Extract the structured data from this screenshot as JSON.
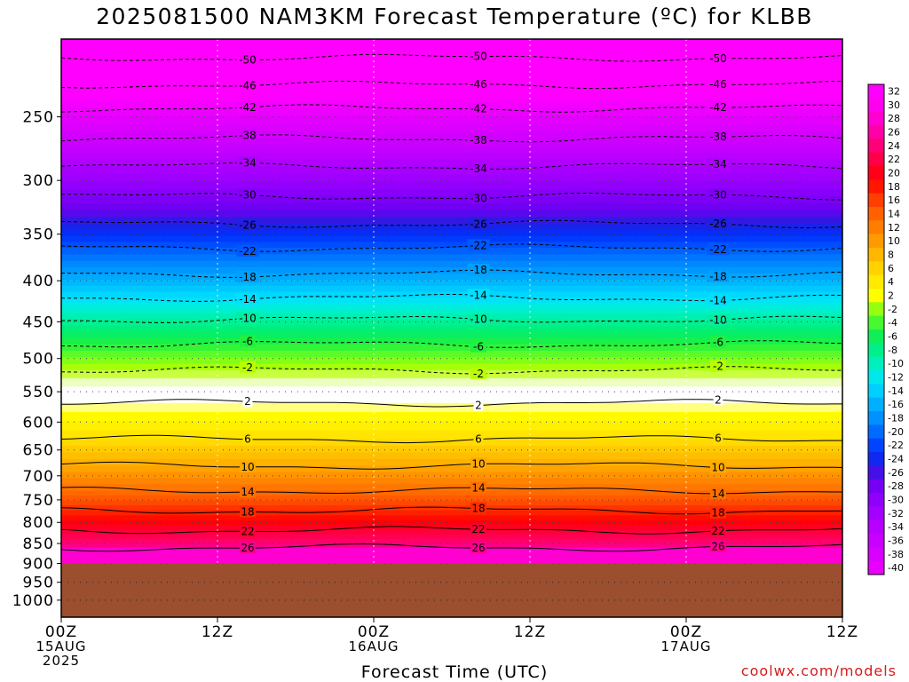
{
  "chart_data": {
    "type": "heatmap",
    "title": "2025081500 NAM3KM Forecast Temperature (ºC) for KLBB",
    "xlabel": "Forecast Time (UTC)",
    "ylabel": "",
    "x_ticks": [
      {
        "lines": [
          "00Z",
          "15AUG",
          "2025"
        ]
      },
      {
        "lines": [
          "12Z"
        ]
      },
      {
        "lines": [
          "00Z",
          "16AUG"
        ]
      },
      {
        "lines": [
          "12Z"
        ]
      },
      {
        "lines": [
          "00Z",
          "17AUG"
        ]
      },
      {
        "lines": [
          "12Z"
        ]
      }
    ],
    "x_range_hours": [
      0,
      60
    ],
    "y_axis": "pressure (log scale, inverted)",
    "y_ticks": [
      250,
      300,
      350,
      400,
      450,
      500,
      550,
      600,
      650,
      700,
      750,
      800,
      850,
      900,
      950,
      1000
    ],
    "ylim": [
      200,
      1050
    ],
    "ground_below_hpa": 900,
    "colorbar_levels": [
      32,
      30,
      28,
      26,
      24,
      22,
      20,
      18,
      16,
      14,
      12,
      10,
      8,
      6,
      4,
      2,
      -2,
      -4,
      -6,
      -8,
      -10,
      -12,
      -14,
      -16,
      -18,
      -20,
      -22,
      -24,
      -26,
      -28,
      -30,
      -32,
      -34,
      -36,
      -38,
      -40
    ],
    "contour_labels": [
      "-50",
      "-46",
      "-42",
      "-38",
      "-34",
      "-30",
      "-26",
      "-22",
      "-18",
      "-14",
      "-10",
      "-6",
      "-2",
      "2",
      "6",
      "10",
      "14",
      "18",
      "22",
      "26"
    ],
    "isotherm_pressure_hpa": [
      {
        "t": -50,
        "p": 211
      },
      {
        "t": -46,
        "p": 228
      },
      {
        "t": -42,
        "p": 244
      },
      {
        "t": -38,
        "p": 266
      },
      {
        "t": -34,
        "p": 288
      },
      {
        "t": -30,
        "p": 314
      },
      {
        "t": -26,
        "p": 340
      },
      {
        "t": -22,
        "p": 364
      },
      {
        "t": -18,
        "p": 392
      },
      {
        "t": -14,
        "p": 420
      },
      {
        "t": -10,
        "p": 447
      },
      {
        "t": -6,
        "p": 480
      },
      {
        "t": -2,
        "p": 517
      },
      {
        "t": 2,
        "p": 568
      },
      {
        "t": 6,
        "p": 630
      },
      {
        "t": 10,
        "p": 680
      },
      {
        "t": 14,
        "p": 730
      },
      {
        "t": 18,
        "p": 773
      },
      {
        "t": 22,
        "p": 818
      },
      {
        "t": 26,
        "p": 860
      }
    ]
  },
  "watermark": "coolwx.com/models"
}
